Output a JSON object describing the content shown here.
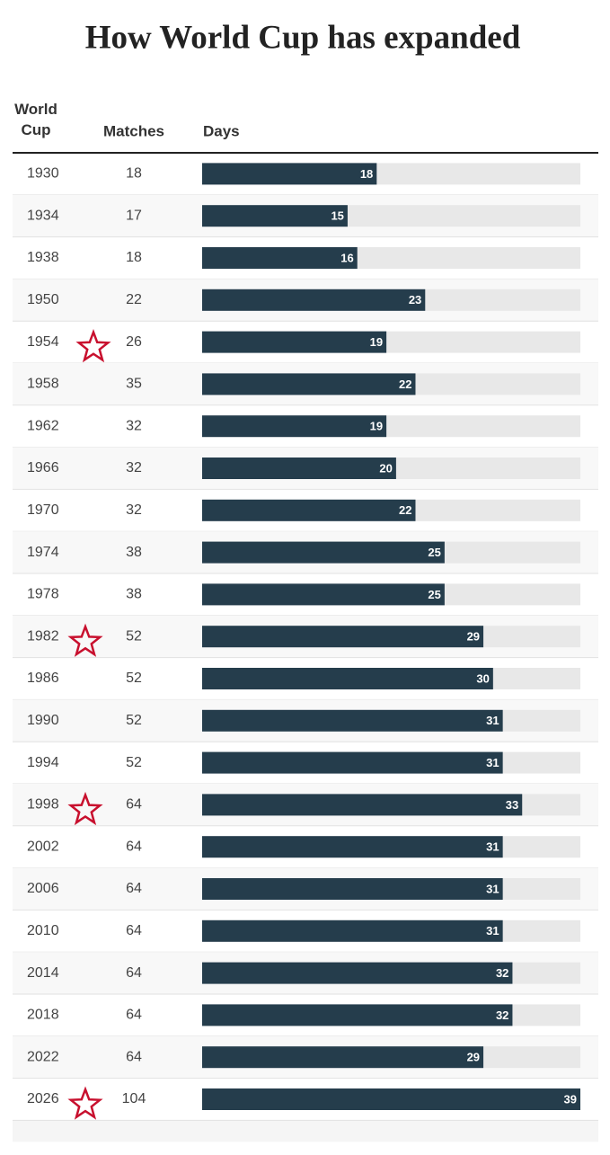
{
  "chart_data": {
    "type": "bar",
    "title": "How World Cup has expanded",
    "headers": {
      "cup": "World Cup",
      "matches": "Matches",
      "days": "Days"
    },
    "categories": [
      "1930",
      "1934",
      "1938",
      "1950",
      "1954",
      "1958",
      "1962",
      "1966",
      "1970",
      "1974",
      "1978",
      "1982",
      "1986",
      "1990",
      "1994",
      "1998",
      "2002",
      "2006",
      "2010",
      "2014",
      "2018",
      "2022",
      "2026"
    ],
    "matches": [
      "18",
      "17",
      "18",
      "22",
      "26",
      "35",
      "32",
      "32",
      "32",
      "38",
      "38",
      "52",
      "52",
      "52",
      "52",
      "64",
      "64",
      "64",
      "64",
      "64",
      "64",
      "64",
      "104"
    ],
    "values": [
      18,
      15,
      16,
      23,
      19,
      22,
      19,
      20,
      22,
      25,
      25,
      29,
      30,
      31,
      31,
      33,
      31,
      31,
      31,
      32,
      32,
      29,
      39
    ],
    "starred": [
      false,
      false,
      false,
      false,
      true,
      false,
      false,
      false,
      false,
      false,
      false,
      true,
      false,
      false,
      false,
      true,
      false,
      false,
      false,
      false,
      false,
      false,
      true
    ],
    "xlim": [
      0,
      39
    ],
    "color": "#253d4c",
    "track_color": "#e8e8e8",
    "star_color": "#c8102e"
  }
}
